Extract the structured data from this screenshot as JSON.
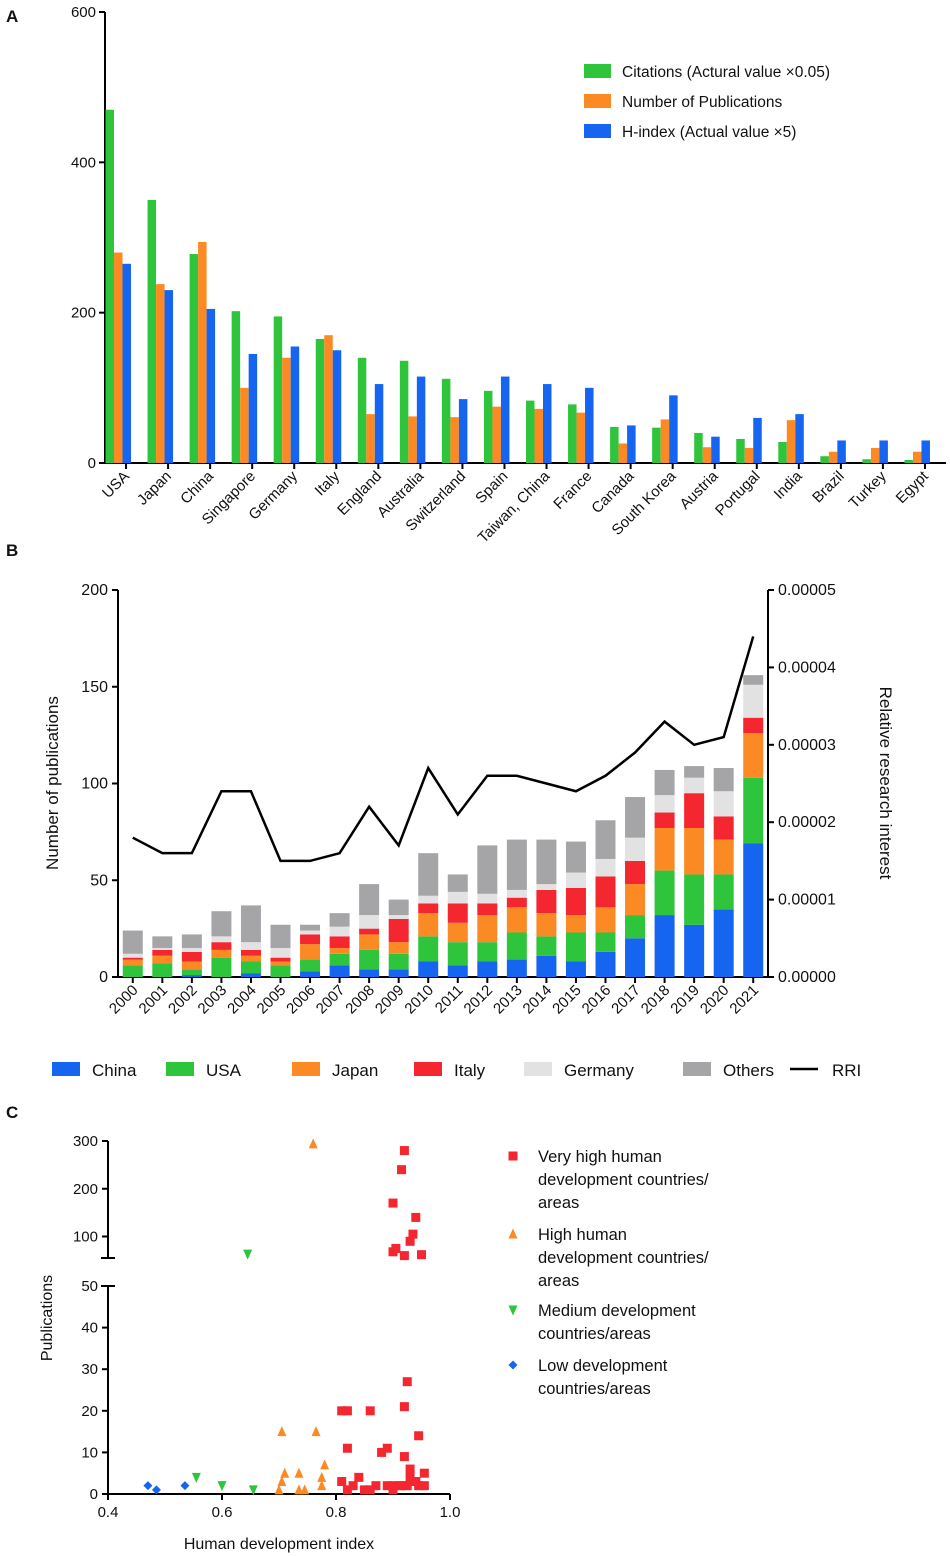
{
  "colors": {
    "green": "#2ec43c",
    "orange": "#fb8a24",
    "blue": "#1565f0",
    "red": "#f42630",
    "lightgray": "#e2e2e2",
    "gray": "#a5a5a8",
    "black": "#000000"
  },
  "chart_data": [
    {
      "panel": "A",
      "type": "bar",
      "ylim": [
        0,
        600
      ],
      "yticks": [
        "0",
        "200",
        "400",
        "600"
      ],
      "categories": [
        "USA",
        "Japan",
        "China",
        "Singapore",
        "Germany",
        "Italy",
        "England",
        "Australia",
        "Switzerland",
        "Spain",
        "Taiwan, China",
        "France",
        "Canada",
        "South Korea",
        "Austria",
        "Portugal",
        "India",
        "Brazil",
        "Turkey",
        "Egypt"
      ],
      "series": [
        {
          "name": "Citations (Actural value ×0.05)",
          "color": "#2ec43c",
          "values": [
            470,
            350,
            278,
            202,
            195,
            165,
            140,
            136,
            112,
            96,
            83,
            78,
            48,
            47,
            40,
            32,
            28,
            9,
            5,
            4
          ]
        },
        {
          "name": "Number of Publications",
          "color": "#fb8a24",
          "values": [
            280,
            238,
            294,
            100,
            140,
            170,
            65,
            62,
            61,
            75,
            72,
            67,
            26,
            58,
            21,
            20,
            57,
            15,
            20,
            15
          ]
        },
        {
          "name": "H-index (Actual value ×5)",
          "color": "#1565f0",
          "values": [
            265,
            230,
            205,
            145,
            155,
            150,
            105,
            115,
            85,
            115,
            105,
            100,
            50,
            90,
            35,
            60,
            65,
            30,
            30,
            30
          ]
        }
      ]
    },
    {
      "panel": "B",
      "type": "bar",
      "stacked": true,
      "ylabel": "Number of publications",
      "y2label": "Relative research interest",
      "ylim": [
        0,
        200
      ],
      "yticks": [
        "0",
        "50",
        "100",
        "150",
        "200"
      ],
      "y2lim": [
        0,
        5e-05
      ],
      "y2ticks": [
        "0.00000",
        "0.00001",
        "0.00002",
        "0.00003",
        "0.00004",
        "0.00005"
      ],
      "categories": [
        "2000",
        "2001",
        "2002",
        "2003",
        "2004",
        "2005",
        "2006",
        "2007",
        "2008",
        "2009",
        "2010",
        "2011",
        "2012",
        "2013",
        "2014",
        "2015",
        "2016",
        "2017",
        "2018",
        "2019",
        "2020",
        "2021"
      ],
      "series": [
        {
          "name": "China",
          "color": "#1565f0",
          "values": [
            0,
            0,
            1,
            0,
            2,
            0,
            3,
            6,
            4,
            4,
            8,
            6,
            8,
            9,
            11,
            8,
            13,
            20,
            32,
            27,
            35,
            69
          ]
        },
        {
          "name": "USA",
          "color": "#2ec43c",
          "values": [
            6,
            7,
            3,
            10,
            6,
            6,
            6,
            6,
            10,
            8,
            13,
            12,
            10,
            14,
            10,
            15,
            10,
            12,
            23,
            26,
            18,
            34
          ]
        },
        {
          "name": "Japan",
          "color": "#fb8a24",
          "values": [
            3,
            4,
            4,
            4,
            3,
            2,
            8,
            3,
            8,
            6,
            12,
            10,
            14,
            13,
            12,
            9,
            13,
            16,
            22,
            24,
            18,
            23
          ]
        },
        {
          "name": "Italy",
          "color": "#f42630",
          "values": [
            1,
            3,
            5,
            4,
            3,
            2,
            5,
            6,
            3,
            12,
            5,
            10,
            6,
            5,
            12,
            14,
            16,
            12,
            8,
            18,
            12,
            8
          ]
        },
        {
          "name": "Germany",
          "color": "#e2e2e2",
          "values": [
            2,
            1,
            2,
            3,
            4,
            5,
            2,
            5,
            7,
            2,
            4,
            6,
            5,
            4,
            3,
            8,
            9,
            12,
            9,
            8,
            13,
            17
          ]
        },
        {
          "name": "Others",
          "color": "#a5a5a8",
          "values": [
            12,
            6,
            7,
            13,
            19,
            12,
            3,
            7,
            16,
            8,
            22,
            9,
            25,
            26,
            23,
            16,
            20,
            21,
            13,
            6,
            12,
            5
          ]
        }
      ],
      "line": {
        "name": "RRI",
        "color": "#000000",
        "values": [
          1.8e-05,
          1.6e-05,
          1.6e-05,
          2.4e-05,
          2.4e-05,
          1.5e-05,
          1.5e-05,
          1.6e-05,
          2.2e-05,
          1.7e-05,
          2.7e-05,
          2.1e-05,
          2.6e-05,
          2.6e-05,
          2.5e-05,
          2.4e-05,
          2.6e-05,
          2.9e-05,
          3.3e-05,
          3e-05,
          3.1e-05,
          4.4e-05
        ]
      },
      "legend": [
        "China",
        "USA",
        "Japan",
        "Italy",
        "Germany",
        "Others",
        "RRI"
      ]
    },
    {
      "panel": "C",
      "type": "scatter",
      "xlabel": "Human development index",
      "ylabel": "Publications",
      "xlim": [
        0.4,
        1.0
      ],
      "xticks": [
        "0.4",
        "0.6",
        "0.8",
        "1.0"
      ],
      "ylim_lower": [
        0,
        50
      ],
      "yticks_lower": [
        "0",
        "10",
        "20",
        "30",
        "40",
        "50"
      ],
      "ylim_upper": [
        55,
        300
      ],
      "yticks_upper": [
        "100",
        "200",
        "300"
      ],
      "series": [
        {
          "name_lines": [
            "Very high human",
            "development countries/",
            "areas"
          ],
          "marker": "square",
          "color": "#f42630",
          "points": [
            [
              0.92,
              280
            ],
            [
              0.915,
              240
            ],
            [
              0.9,
              170
            ],
            [
              0.94,
              140
            ],
            [
              0.935,
              105
            ],
            [
              0.93,
              90
            ],
            [
              0.905,
              75
            ],
            [
              0.92,
              60
            ],
            [
              0.95,
              62
            ],
            [
              0.9,
              68
            ],
            [
              0.81,
              20
            ],
            [
              0.82,
              11
            ],
            [
              0.82,
              20
            ],
            [
              0.86,
              20
            ],
            [
              0.89,
              11
            ],
            [
              0.88,
              10
            ],
            [
              0.925,
              27
            ],
            [
              0.92,
              21
            ],
            [
              0.945,
              14
            ],
            [
              0.92,
              9
            ],
            [
              0.93,
              6
            ],
            [
              0.955,
              5
            ],
            [
              0.84,
              4
            ],
            [
              0.81,
              3
            ],
            [
              0.83,
              2
            ],
            [
              0.85,
              1
            ],
            [
              0.87,
              2
            ],
            [
              0.89,
              2
            ],
            [
              0.9,
              2
            ],
            [
              0.91,
              2
            ],
            [
              0.925,
              2
            ],
            [
              0.94,
              3
            ],
            [
              0.93,
              4
            ],
            [
              0.945,
              2
            ],
            [
              0.955,
              2
            ],
            [
              0.82,
              1
            ],
            [
              0.86,
              1
            ],
            [
              0.9,
              1
            ],
            [
              0.915,
              2
            ],
            [
              0.935,
              3
            ]
          ]
        },
        {
          "name_lines": [
            "High human",
            "development  countries/",
            "areas"
          ],
          "marker": "triangle-up",
          "color": "#fb8a24",
          "points": [
            [
              0.76,
              294
            ],
            [
              0.705,
              15
            ],
            [
              0.765,
              15
            ],
            [
              0.71,
              5
            ],
            [
              0.735,
              5
            ],
            [
              0.78,
              7
            ],
            [
              0.775,
              4
            ],
            [
              0.705,
              3
            ],
            [
              0.745,
              1
            ],
            [
              0.775,
              2
            ],
            [
              0.735,
              1
            ],
            [
              0.7,
              1
            ]
          ]
        },
        {
          "name_lines": [
            "Medium development",
            "countries/areas"
          ],
          "marker": "triangle-down",
          "color": "#2ec43c",
          "points": [
            [
              0.645,
              63
            ],
            [
              0.555,
              4
            ],
            [
              0.6,
              2
            ],
            [
              0.655,
              1
            ]
          ]
        },
        {
          "name_lines": [
            "Low development",
            "countries/areas"
          ],
          "marker": "diamond",
          "color": "#1565f0",
          "points": [
            [
              0.47,
              2
            ],
            [
              0.485,
              1
            ],
            [
              0.535,
              2
            ]
          ]
        }
      ]
    }
  ],
  "panel_labels": [
    "A",
    "B",
    "C"
  ]
}
